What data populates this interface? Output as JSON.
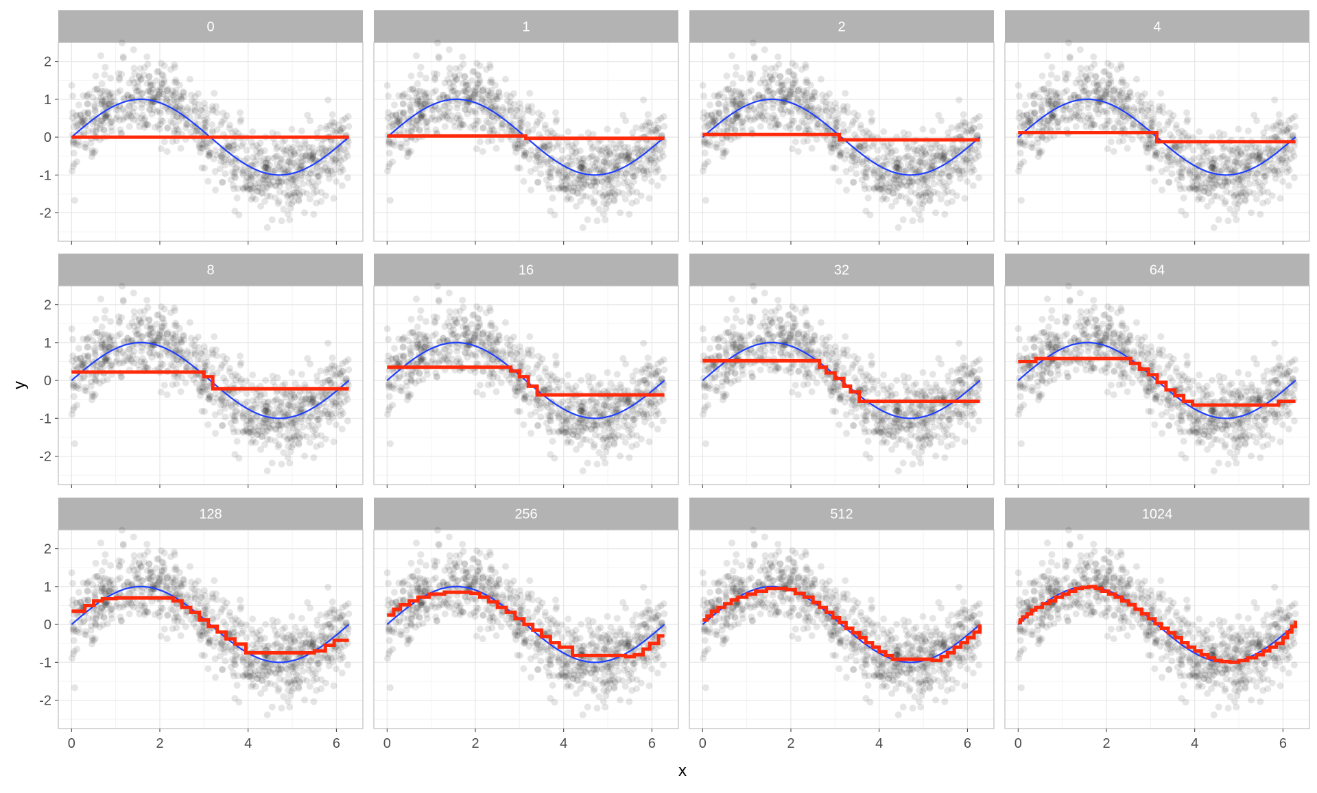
{
  "chart_data": {
    "type": "scatter",
    "xlabel": "x",
    "ylabel": "y",
    "xlim": [
      -0.3,
      6.6
    ],
    "ylim": [
      -2.75,
      2.5
    ],
    "x_ticks": [
      0,
      2,
      4,
      6
    ],
    "y_ticks": [
      -2,
      -1,
      0,
      1,
      2
    ],
    "x_tick_labels": [
      "0",
      "2",
      "4",
      "6"
    ],
    "y_tick_labels": [
      "-2",
      "-1",
      "0",
      "1",
      "2"
    ],
    "grid": true,
    "colors": {
      "points": "#000000",
      "true_curve": "#1f3fff",
      "fit": "#ff2a0a",
      "strip": "#b3b3b3",
      "strip_text": "#ffffff",
      "grid_major": "#e6e6e6",
      "grid_minor": "#f3f3f3",
      "panel_border": "#bdbdbd",
      "axis_text": "#4d4d4d"
    },
    "true_curve": "sin(x)",
    "points": {
      "n": 900,
      "x_range": [
        0,
        6.283
      ],
      "noise_sd": 0.5,
      "point_opacity": 0.1
    },
    "panels": [
      {
        "label": "0",
        "fit_x": [
          0,
          6.283
        ],
        "fit_y": [
          0.0,
          0.0
        ]
      },
      {
        "label": "1",
        "fit_x": [
          0,
          3.14,
          6.283
        ],
        "fit_y": [
          0.03,
          -0.03,
          -0.03
        ]
      },
      {
        "label": "2",
        "fit_x": [
          0,
          3.1,
          6.283
        ],
        "fit_y": [
          0.07,
          -0.07,
          -0.07
        ]
      },
      {
        "label": "4",
        "fit_x": [
          0,
          3.14,
          6.283
        ],
        "fit_y": [
          0.12,
          -0.12,
          -0.12
        ]
      },
      {
        "label": "8",
        "fit_x": [
          0,
          3.0,
          3.2,
          6.283
        ],
        "fit_y": [
          0.22,
          0.1,
          -0.22,
          -0.22
        ]
      },
      {
        "label": "16",
        "fit_x": [
          0,
          2.8,
          3.0,
          3.2,
          3.4,
          6.283
        ],
        "fit_y": [
          0.35,
          0.25,
          0.1,
          -0.15,
          -0.38,
          -0.38
        ]
      },
      {
        "label": "32",
        "fit_x": [
          0,
          2.65,
          2.8,
          3.0,
          3.2,
          3.35,
          3.55,
          6.283
        ],
        "fit_y": [
          0.52,
          0.35,
          0.2,
          0.05,
          -0.15,
          -0.3,
          -0.55,
          -0.55
        ]
      },
      {
        "label": "64",
        "fit_x": [
          0,
          0.4,
          2.55,
          2.75,
          2.95,
          3.15,
          3.35,
          3.55,
          3.75,
          3.95,
          5.9,
          6.283
        ],
        "fit_y": [
          0.5,
          0.58,
          0.45,
          0.3,
          0.15,
          -0.05,
          -0.25,
          -0.4,
          -0.55,
          -0.65,
          -0.55,
          -0.55
        ]
      },
      {
        "label": "128",
        "fit_x": [
          0,
          0.3,
          0.5,
          0.7,
          1.0,
          2.3,
          2.5,
          2.7,
          2.9,
          3.1,
          3.3,
          3.5,
          3.7,
          3.95,
          5.5,
          5.75,
          5.95,
          6.283
        ],
        "fit_y": [
          0.35,
          0.5,
          0.62,
          0.68,
          0.7,
          0.62,
          0.45,
          0.32,
          0.12,
          -0.05,
          -0.2,
          -0.38,
          -0.52,
          -0.75,
          -0.7,
          -0.55,
          -0.42,
          -0.42
        ]
      },
      {
        "label": "256",
        "fit_x": [
          0,
          0.15,
          0.3,
          0.5,
          0.7,
          0.95,
          1.3,
          1.9,
          2.1,
          2.3,
          2.5,
          2.7,
          2.9,
          3.1,
          3.3,
          3.5,
          3.7,
          3.9,
          4.2,
          5.4,
          5.6,
          5.8,
          5.95,
          6.15,
          6.283
        ],
        "fit_y": [
          0.25,
          0.4,
          0.52,
          0.62,
          0.72,
          0.8,
          0.85,
          0.82,
          0.72,
          0.6,
          0.45,
          0.32,
          0.15,
          0.0,
          -0.15,
          -0.32,
          -0.48,
          -0.6,
          -0.82,
          -0.85,
          -0.8,
          -0.65,
          -0.5,
          -0.3,
          -0.3
        ]
      },
      {
        "label": "512",
        "fit_x": [
          0,
          0.1,
          0.2,
          0.35,
          0.5,
          0.65,
          0.8,
          1.0,
          1.2,
          1.45,
          1.9,
          2.1,
          2.3,
          2.5,
          2.65,
          2.8,
          2.95,
          3.1,
          3.25,
          3.4,
          3.55,
          3.7,
          3.85,
          4.0,
          4.15,
          4.3,
          5.2,
          5.4,
          5.55,
          5.7,
          5.85,
          6.0,
          6.15,
          6.283
        ],
        "fit_y": [
          0.12,
          0.22,
          0.35,
          0.45,
          0.55,
          0.65,
          0.72,
          0.8,
          0.88,
          0.95,
          0.92,
          0.82,
          0.72,
          0.58,
          0.45,
          0.32,
          0.18,
          0.05,
          -0.1,
          -0.22,
          -0.35,
          -0.48,
          -0.6,
          -0.72,
          -0.82,
          -0.92,
          -0.95,
          -0.85,
          -0.75,
          -0.6,
          -0.48,
          -0.35,
          -0.2,
          0.0
        ]
      },
      {
        "label": "1024",
        "fit_x": [
          0,
          0.05,
          0.1,
          0.2,
          0.3,
          0.4,
          0.55,
          0.7,
          0.85,
          1.0,
          1.15,
          1.3,
          1.45,
          1.6,
          1.75,
          1.9,
          2.05,
          2.2,
          2.35,
          2.5,
          2.65,
          2.8,
          2.95,
          3.1,
          3.25,
          3.4,
          3.55,
          3.7,
          3.85,
          4.0,
          4.15,
          4.3,
          4.45,
          4.6,
          4.8,
          5.0,
          5.2,
          5.4,
          5.55,
          5.7,
          5.85,
          6.0,
          6.1,
          6.2,
          6.283
        ],
        "fit_y": [
          0.05,
          0.12,
          0.2,
          0.28,
          0.38,
          0.45,
          0.55,
          0.62,
          0.72,
          0.8,
          0.88,
          0.95,
          0.98,
          1.0,
          0.95,
          0.88,
          0.8,
          0.72,
          0.62,
          0.52,
          0.4,
          0.28,
          0.15,
          0.02,
          -0.1,
          -0.22,
          -0.35,
          -0.48,
          -0.6,
          -0.7,
          -0.8,
          -0.88,
          -0.95,
          -0.98,
          -1.0,
          -0.95,
          -0.88,
          -0.8,
          -0.7,
          -0.6,
          -0.5,
          -0.35,
          -0.2,
          -0.05,
          0.1
        ]
      }
    ]
  }
}
